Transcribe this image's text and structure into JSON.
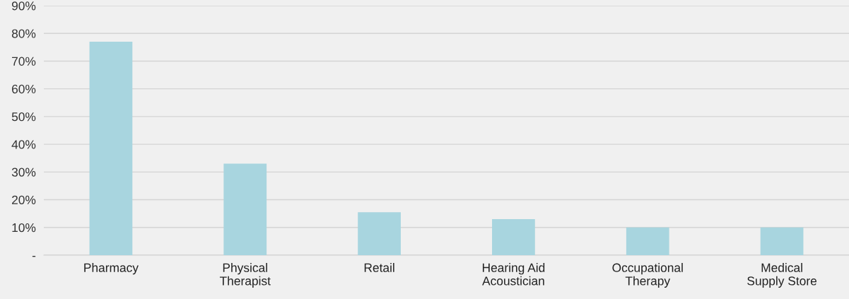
{
  "chart_data": {
    "type": "bar",
    "categories": [
      "Pharmacy",
      "Physical\nTherapist",
      "Retail",
      "Hearing Aid\nAcoustician",
      "Occupational\nTherapy",
      "Medical\nSupply Store"
    ],
    "values": [
      77,
      33,
      15.5,
      13,
      10,
      10
    ],
    "color": "#a8d5df",
    "ylim": [
      0,
      90
    ],
    "yticks": [
      {
        "value": 0,
        "label": "-"
      },
      {
        "value": 10,
        "label": "10%"
      },
      {
        "value": 20,
        "label": "20%"
      },
      {
        "value": 30,
        "label": "30%"
      },
      {
        "value": 40,
        "label": "40%"
      },
      {
        "value": 50,
        "label": "50%"
      },
      {
        "value": 60,
        "label": "60%"
      },
      {
        "value": 70,
        "label": "70%"
      },
      {
        "value": 80,
        "label": "80%"
      },
      {
        "value": 90,
        "label": "90%"
      }
    ],
    "grid": "y",
    "legend": false
  }
}
